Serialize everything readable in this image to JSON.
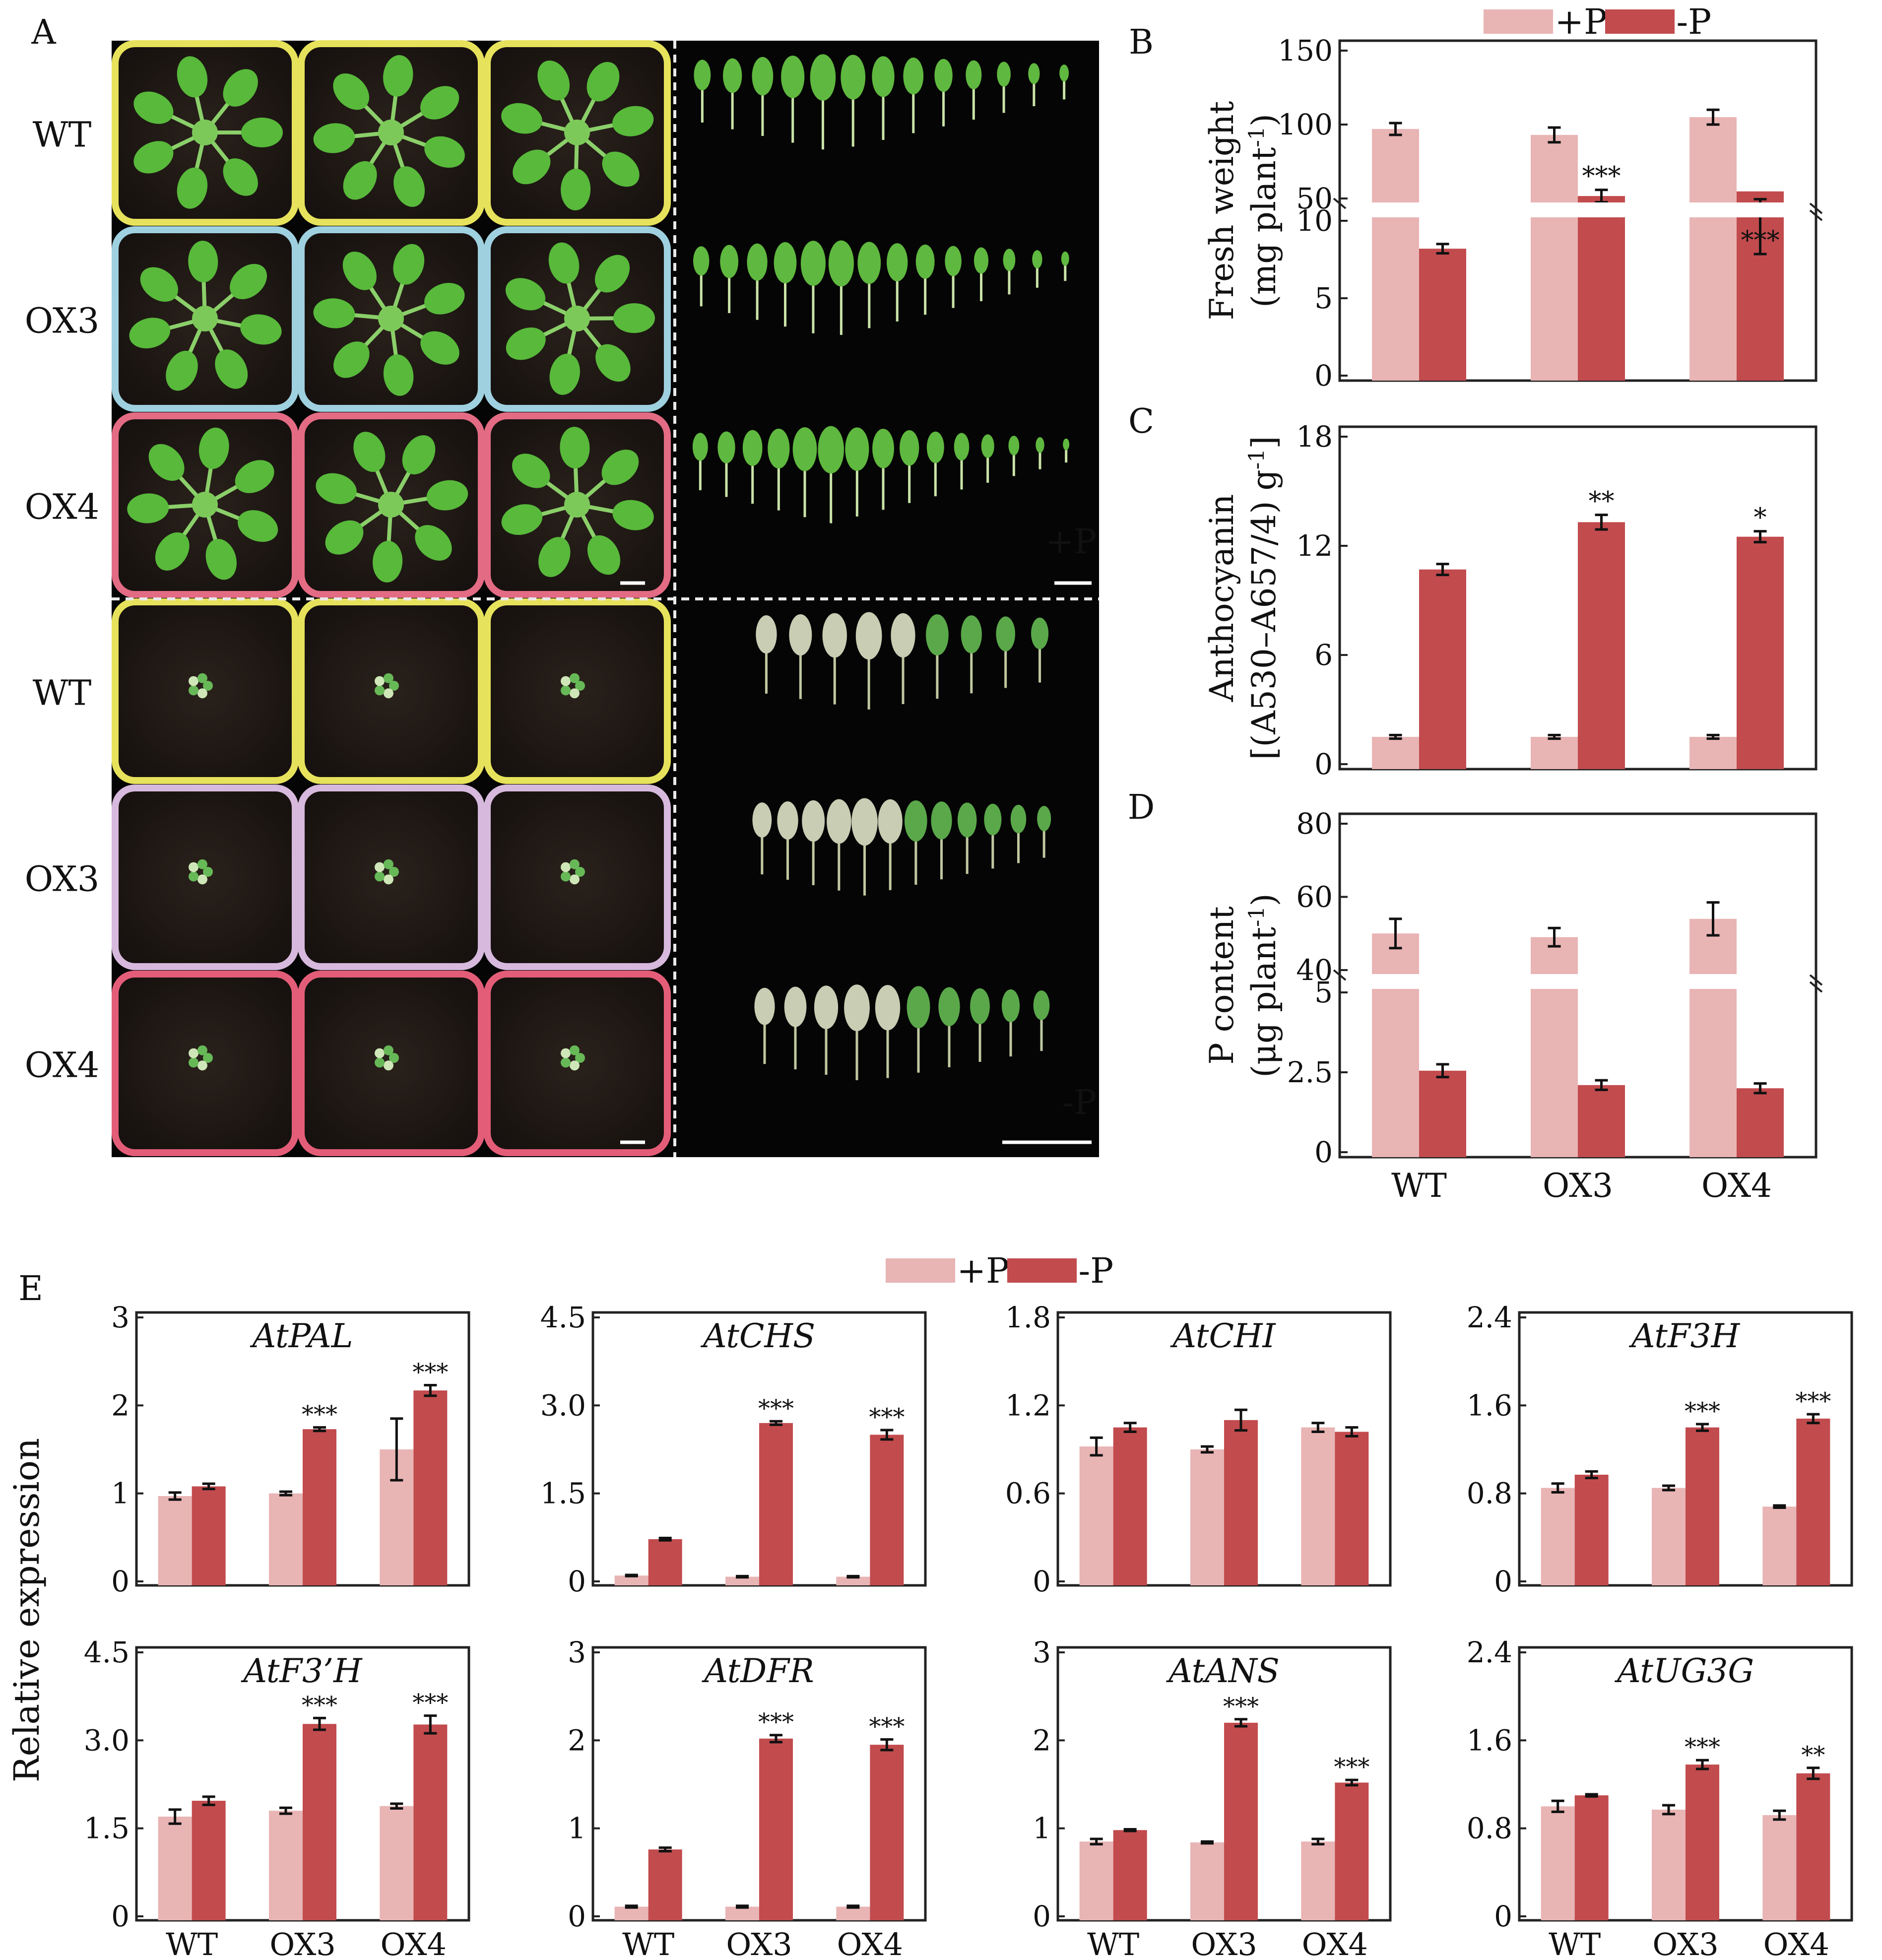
{
  "colors": {
    "plus": "#e9b4b4",
    "minus": "#c24b4e",
    "axis": "#222222",
    "photo_bg": "#050505",
    "soil": "#201a16"
  },
  "legend": {
    "plus_label": "+P",
    "minus_label": "-P"
  },
  "panel_letters": {
    "A": "A",
    "B": "B",
    "C": "C",
    "D": "D",
    "E": "E"
  },
  "panel_a": {
    "row_labels": [
      "WT",
      "OX3",
      "OX4",
      "WT",
      "OX3",
      "OX4"
    ],
    "condition_plus": "+P",
    "condition_minus": "-P",
    "icons": [
      "rosette-photo",
      "detached-leaf-photo",
      "scale-bar"
    ]
  },
  "ylabel_e": "Relative expression",
  "chart_data": [
    {
      "id": "B",
      "type": "bar",
      "broken_axis": true,
      "categories": [
        "WT",
        "OX3",
        "OX4"
      ],
      "ylabel": [
        "Fresh weight",
        "(mg plant-1)"
      ],
      "ticks_upper": [
        50,
        100,
        150
      ],
      "ticks_lower": [
        0,
        5,
        10
      ],
      "series": [
        {
          "name": "+P",
          "values": [
            97,
            93,
            105
          ],
          "errors": [
            4,
            5,
            5
          ]
        },
        {
          "name": "-P",
          "values": [
            8.2,
            11.6,
            11.9
          ],
          "errors": [
            0.3,
            0.4,
            0.5
          ]
        }
      ],
      "significance": [
        "",
        "***",
        "***"
      ]
    },
    {
      "id": "C",
      "type": "bar",
      "categories": [
        "WT",
        "OX3",
        "OX4"
      ],
      "ylabel": [
        "Anthocyanin",
        "[(A530–A657/4) g-1]"
      ],
      "ylim": [
        0,
        18
      ],
      "yticks": [
        0,
        6,
        12,
        18
      ],
      "series": [
        {
          "name": "+P",
          "values": [
            1.5,
            1.5,
            1.5
          ],
          "errors": [
            0.1,
            0.1,
            0.1
          ]
        },
        {
          "name": "-P",
          "values": [
            10.7,
            13.3,
            12.5
          ],
          "errors": [
            0.3,
            0.4,
            0.3
          ]
        }
      ],
      "significance": [
        "",
        "**",
        "*"
      ]
    },
    {
      "id": "D",
      "type": "bar",
      "broken_axis": true,
      "categories": [
        "WT",
        "OX3",
        "OX4"
      ],
      "ylabel": [
        "P content",
        "(μg plant-1)"
      ],
      "ticks_upper": [
        40,
        60,
        80
      ],
      "ticks_lower": [
        0,
        2.5,
        5.0
      ],
      "series": [
        {
          "name": "+P",
          "values": [
            50,
            49,
            54
          ],
          "errors": [
            4,
            2.5,
            4.5
          ]
        },
        {
          "name": "-P",
          "values": [
            2.55,
            2.1,
            2.0
          ],
          "errors": [
            0.2,
            0.15,
            0.15
          ]
        }
      ],
      "significance": [
        "",
        "",
        ""
      ]
    },
    {
      "id": "AtPAL",
      "type": "bar",
      "title": "AtPAL",
      "categories": [
        "WT",
        "OX3",
        "OX4"
      ],
      "ylim": [
        0,
        3
      ],
      "yticks": [
        0,
        1,
        2,
        3
      ],
      "ytick_labels": [
        "0",
        "1",
        "2",
        "3"
      ],
      "series": [
        {
          "name": "+P",
          "values": [
            0.97,
            1.0,
            1.5
          ],
          "errors": [
            0.04,
            0.02,
            0.35
          ]
        },
        {
          "name": "-P",
          "values": [
            1.08,
            1.73,
            2.17
          ],
          "errors": [
            0.03,
            0.02,
            0.06
          ]
        }
      ],
      "significance": [
        "",
        "***",
        "***"
      ]
    },
    {
      "id": "AtCHS",
      "type": "bar",
      "title": "AtCHS",
      "categories": [
        "WT",
        "OX3",
        "OX4"
      ],
      "ylim": [
        0,
        4.5
      ],
      "yticks": [
        0,
        1.5,
        3.0,
        4.5
      ],
      "ytick_labels": [
        "0",
        "1.5",
        "3.0",
        "4.5"
      ],
      "series": [
        {
          "name": "+P",
          "values": [
            0.1,
            0.08,
            0.08
          ],
          "errors": [
            0.01,
            0.01,
            0.01
          ]
        },
        {
          "name": "-P",
          "values": [
            0.72,
            2.7,
            2.5
          ],
          "errors": [
            0.02,
            0.03,
            0.08
          ]
        }
      ],
      "significance": [
        "",
        "***",
        "***"
      ]
    },
    {
      "id": "AtCHI",
      "type": "bar",
      "title": "AtCHI",
      "categories": [
        "WT",
        "OX3",
        "OX4"
      ],
      "ylim": [
        0,
        1.8
      ],
      "yticks": [
        0,
        0.6,
        1.2,
        1.8
      ],
      "ytick_labels": [
        "0",
        "0.6",
        "1.2",
        "1.8"
      ],
      "series": [
        {
          "name": "+P",
          "values": [
            0.92,
            0.9,
            1.05
          ],
          "errors": [
            0.06,
            0.02,
            0.03
          ]
        },
        {
          "name": "-P",
          "values": [
            1.05,
            1.1,
            1.02
          ],
          "errors": [
            0.03,
            0.07,
            0.03
          ]
        }
      ],
      "significance": [
        "",
        "",
        ""
      ]
    },
    {
      "id": "AtF3H",
      "type": "bar",
      "title": "AtF3H",
      "categories": [
        "WT",
        "OX3",
        "OX4"
      ],
      "ylim": [
        0,
        2.4
      ],
      "yticks": [
        0,
        0.8,
        1.6,
        2.4
      ],
      "ytick_labels": [
        "0",
        "0.8",
        "1.6",
        "2.4"
      ],
      "series": [
        {
          "name": "+P",
          "values": [
            0.85,
            0.85,
            0.68
          ],
          "errors": [
            0.04,
            0.02,
            0.01
          ]
        },
        {
          "name": "-P",
          "values": [
            0.97,
            1.4,
            1.48
          ],
          "errors": [
            0.03,
            0.03,
            0.04
          ]
        }
      ],
      "significance": [
        "",
        "***",
        "***"
      ]
    },
    {
      "id": "AtF3'H",
      "type": "bar",
      "title": "AtF3’H",
      "categories": [
        "WT",
        "OX3",
        "OX4"
      ],
      "ylim": [
        0,
        4.5
      ],
      "yticks": [
        0,
        1.5,
        3.0,
        4.5
      ],
      "ytick_labels": [
        "0",
        "1.5",
        "3.0",
        "4.5"
      ],
      "series": [
        {
          "name": "+P",
          "values": [
            1.7,
            1.8,
            1.88
          ],
          "errors": [
            0.12,
            0.05,
            0.04
          ]
        },
        {
          "name": "-P",
          "values": [
            1.97,
            3.28,
            3.27
          ],
          "errors": [
            0.07,
            0.1,
            0.15
          ]
        }
      ],
      "significance": [
        "",
        "***",
        "***"
      ]
    },
    {
      "id": "AtDFR",
      "type": "bar",
      "title": "AtDFR",
      "categories": [
        "WT",
        "OX3",
        "OX4"
      ],
      "ylim": [
        0,
        3
      ],
      "yticks": [
        0,
        1,
        2,
        3
      ],
      "ytick_labels": [
        "0",
        "1",
        "2",
        "3"
      ],
      "series": [
        {
          "name": "+P",
          "values": [
            0.11,
            0.11,
            0.11
          ],
          "errors": [
            0.01,
            0.01,
            0.01
          ]
        },
        {
          "name": "-P",
          "values": [
            0.76,
            2.02,
            1.95
          ],
          "errors": [
            0.02,
            0.04,
            0.06
          ]
        }
      ],
      "significance": [
        "",
        "***",
        "***"
      ]
    },
    {
      "id": "AtANS",
      "type": "bar",
      "title": "AtANS",
      "categories": [
        "WT",
        "OX3",
        "OX4"
      ],
      "ylim": [
        0,
        3
      ],
      "yticks": [
        0,
        1,
        2,
        3
      ],
      "ytick_labels": [
        "0",
        "1",
        "2",
        "3"
      ],
      "series": [
        {
          "name": "+P",
          "values": [
            0.85,
            0.84,
            0.85
          ],
          "errors": [
            0.03,
            0.01,
            0.03
          ]
        },
        {
          "name": "-P",
          "values": [
            0.98,
            2.2,
            1.52
          ],
          "errors": [
            0.01,
            0.04,
            0.03
          ]
        }
      ],
      "significance": [
        "",
        "***",
        "***"
      ]
    },
    {
      "id": "AtUG3G",
      "type": "bar",
      "title": "AtUG3G",
      "categories": [
        "WT",
        "OX3",
        "OX4"
      ],
      "ylim": [
        0,
        2.4
      ],
      "yticks": [
        0,
        0.8,
        1.6,
        2.4
      ],
      "ytick_labels": [
        "0",
        "0.8",
        "1.6",
        "2.4"
      ],
      "series": [
        {
          "name": "+P",
          "values": [
            1.0,
            0.97,
            0.92
          ],
          "errors": [
            0.05,
            0.04,
            0.04
          ]
        },
        {
          "name": "-P",
          "values": [
            1.1,
            1.38,
            1.3
          ],
          "errors": [
            0.01,
            0.04,
            0.05
          ]
        }
      ],
      "significance": [
        "",
        "***",
        "**"
      ]
    }
  ]
}
